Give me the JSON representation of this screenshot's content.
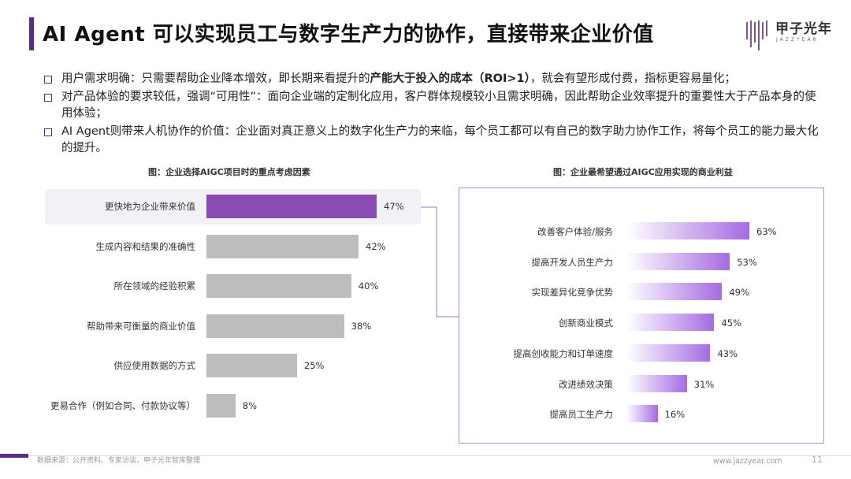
{
  "header": {
    "title": "AI Agent 可以实现员工与数字生产力的协作，直接带来企业价值",
    "logo_text": "甲子光年",
    "logo_sub": "JAZZYEAR"
  },
  "bullets": [
    {
      "before": "用户需求明确：只需要帮助企业降本增效，即长期来看提升的",
      "bold": "产能大于投入的成本（ROI>1）",
      "after": "，就会有望形成付费，指标更容易量化；"
    },
    {
      "before": "对产品体验的要求较低，强调“可用性”：面向企业端的定制化应用，客户群体规模较小且需求明确，因此帮助企业效率提升的重要性大于产品本身的使用体验；",
      "bold": "",
      "after": ""
    },
    {
      "before": "AI Agent则带来人机协作的价值：企业面对真正意义上的数字化生产力的来临，每个员工都可以有自己的数字助力协作工作，将每个员工的能力最大化的提升。",
      "bold": "",
      "after": ""
    }
  ],
  "chart_data": [
    {
      "type": "bar",
      "orientation": "horizontal",
      "title": "图：企业选择AIGC项目时的重点考虑因素",
      "categories": [
        "更快地为企业带来价值",
        "生成内容和结果的准确性",
        "所在领域的经验积累",
        "帮助带来可衡量的商业价值",
        "供应使用数据的方式",
        "更易合作（例如合同、付款协议等）"
      ],
      "values": [
        47,
        42,
        40,
        38,
        25,
        8
      ],
      "value_labels": [
        "47%",
        "42%",
        "40%",
        "38%",
        "25%",
        "8%"
      ],
      "unit": "%",
      "highlight_index": 0,
      "colors": {
        "highlight": "#8a4bb3",
        "default": "#bdbdbd"
      }
    },
    {
      "type": "bar",
      "orientation": "horizontal",
      "title": "图：企业最希望通过AIGC应用实现的商业利益",
      "categories": [
        "改善客户体验/服务",
        "提高开发人员生产力",
        "实现差异化竞争优势",
        "创新商业模式",
        "提高创收能力和订单速度",
        "改进绩效决策",
        "提高员工生产力"
      ],
      "values": [
        63,
        53,
        49,
        45,
        43,
        31,
        16
      ],
      "value_labels": [
        "63%",
        "53%",
        "49%",
        "45%",
        "43%",
        "31%",
        "16%"
      ],
      "unit": "%",
      "colors": {
        "gradient_end": "#a76be0",
        "gradient_start": "#ffffff"
      }
    }
  ],
  "footer": {
    "source": "数据来源：公开资料、专家访谈，甲子光年智库整理",
    "website": "www.jazzyear.com",
    "page": "11"
  },
  "colors": {
    "brand": "#5a2d82",
    "accent": "#8a4bb3",
    "frame": "#b58fd6"
  }
}
